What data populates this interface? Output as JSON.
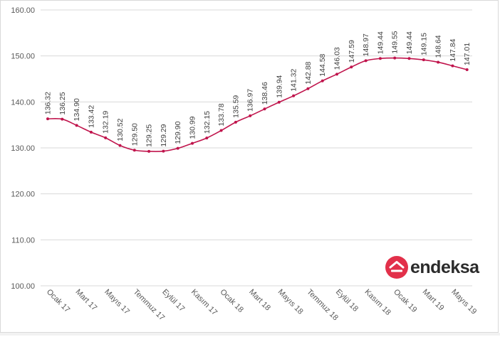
{
  "chart_data": {
    "type": "line",
    "title": "",
    "xlabel": "",
    "ylabel": "",
    "ylim": [
      100,
      160
    ],
    "yticks": [
      "100.00",
      "110.00",
      "120.00",
      "130.00",
      "140.00",
      "150.00",
      "160.00"
    ],
    "grid": true,
    "color": "#c0144c",
    "x_tick_labels": [
      "Ocak 17",
      "Mart 17",
      "Mayıs 17",
      "Temmuz 17",
      "Eylül 17",
      "Kasım 17",
      "Ocak 18",
      "Mart 18",
      "Mayıs 18",
      "Temmuz 18",
      "Eylül 18",
      "Kasım 18",
      "Ocak 19",
      "Mart 19",
      "Mayıs 19"
    ],
    "x_tick_every": 2,
    "values": [
      136.32,
      136.25,
      134.9,
      133.42,
      132.19,
      130.52,
      129.5,
      129.25,
      129.29,
      129.9,
      130.99,
      132.15,
      133.78,
      135.59,
      136.97,
      138.46,
      139.94,
      141.32,
      142.88,
      144.58,
      146.03,
      147.59,
      148.97,
      149.44,
      149.55,
      149.44,
      149.15,
      148.64,
      147.84,
      147.01
    ],
    "data_labels": [
      "136.32",
      "136.25",
      "134.90",
      "133.42",
      "132.19",
      "130.52",
      "129.50",
      "129.25",
      "129.29",
      "129.90",
      "130.99",
      "132.15",
      "133.78",
      "135.59",
      "136.97",
      "138.46",
      "139.94",
      "141.32",
      "142.88",
      "144.58",
      "146.03",
      "147.59",
      "148.97",
      "149.44",
      "149.55",
      "149.44",
      "149.15",
      "148.64",
      "147.84",
      "147.01"
    ]
  },
  "brand": {
    "logo_text": "endeksa",
    "color": "#e2304a"
  }
}
